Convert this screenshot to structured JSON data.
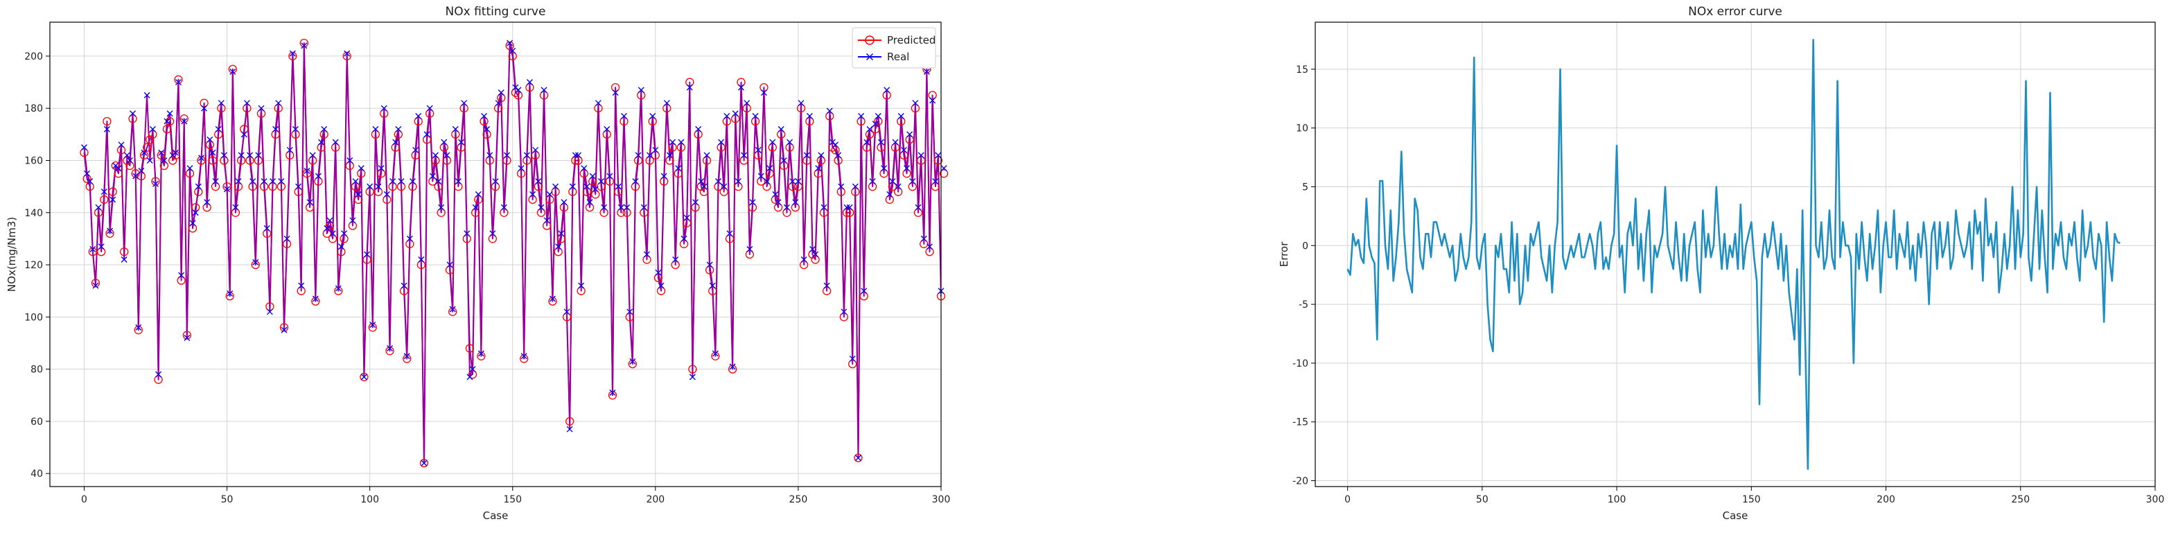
{
  "figure": {
    "colors": {
      "predicted": "#ff0000",
      "real": "#0000ff",
      "fit_line": "#9a009a",
      "error_line": "#1f8ec0",
      "grid": "#d3d3d3",
      "axes": "#000000"
    }
  },
  "chart_data": [
    {
      "type": "line",
      "title": "NOx fitting curve",
      "xlabel": "Case",
      "ylabel": "NOx(mg/Nm3)",
      "xlim": [
        -12,
        300
      ],
      "ylim": [
        35,
        213
      ],
      "xticks": [
        0,
        50,
        100,
        150,
        200,
        250,
        300
      ],
      "yticks": [
        40,
        60,
        80,
        100,
        120,
        140,
        160,
        180,
        200
      ],
      "grid": true,
      "legend": {
        "position": "top-right",
        "entries": [
          "Predicted",
          "Real"
        ]
      },
      "series": [
        {
          "name": "Predicted",
          "marker": "circle",
          "color": "#ff0000",
          "values": [
            163,
            153,
            150,
            125,
            113,
            140,
            125,
            145,
            175,
            132,
            148,
            158,
            155,
            164,
            125,
            160,
            158,
            176,
            155,
            95,
            154,
            162,
            165,
            168,
            170,
            152,
            76,
            162,
            158,
            172,
            175,
            160,
            162,
            191,
            114,
            176,
            93,
            155,
            134,
            142,
            148,
            160,
            182,
            142,
            166,
            160,
            150,
            170,
            180,
            160,
            150,
            108,
            195,
            140,
            150,
            160,
            172,
            180,
            160,
            150,
            120,
            160,
            178,
            150,
            132,
            104,
            150,
            170,
            180,
            150,
            96,
            128,
            162,
            200,
            170,
            148,
            110,
            205,
            155,
            142,
            160,
            106,
            152,
            165,
            170,
            132,
            135,
            130,
            165,
            110,
            125,
            130,
            200,
            158,
            135,
            150,
            145,
            155,
            77,
            122,
            148,
            96,
            170,
            148,
            155,
            178,
            145,
            87,
            150,
            165,
            170,
            150,
            110,
            84,
            128,
            150,
            162,
            175,
            120,
            44,
            168,
            178,
            152,
            160,
            150,
            140,
            165,
            160,
            118,
            102,
            170,
            150,
            165,
            180,
            130,
            88,
            78,
            140,
            145,
            85,
            175,
            170,
            160,
            130,
            150,
            180,
            184,
            140,
            160,
            204,
            200,
            186,
            185,
            155,
            84,
            160,
            188,
            145,
            162,
            150,
            140,
            185,
            135,
            145,
            106,
            148,
            125,
            130,
            142,
            100,
            60,
            148,
            160,
            160,
            110,
            155,
            148,
            142,
            152,
            147,
            180,
            150,
            140,
            170,
            152,
            70,
            188,
            148,
            140,
            175,
            140,
            100,
            82,
            150,
            160,
            185,
            140,
            122,
            160,
            175,
            162,
            115,
            110,
            152,
            180,
            160,
            165,
            120,
            155,
            165,
            128,
            136,
            190,
            80,
            142,
            170,
            150,
            148,
            160,
            118,
            110,
            85,
            150,
            165,
            148,
            175,
            130,
            80,
            176,
            150,
            190,
            160,
            180,
            124,
            142,
            175,
            162,
            152,
            188,
            150,
            155,
            165,
            145,
            142,
            170,
            158,
            140,
            165,
            150,
            142,
            150,
            180,
            120,
            160,
            175,
            124,
            122,
            155,
            160,
            140,
            110,
            177,
            165,
            164,
            160,
            148,
            100,
            140,
            140,
            82,
            148,
            46,
            175,
            108,
            165,
            170,
            150,
            172,
            175,
            165,
            155,
            185,
            145,
            150,
            165,
            148,
            175,
            162,
            155,
            168,
            150,
            180,
            140,
            160,
            128,
            195,
            125,
            185,
            150,
            160,
            108,
            155
          ]
        },
        {
          "name": "Real",
          "marker": "x",
          "color": "#0000ff",
          "values": [
            165,
            155,
            152,
            126,
            112,
            142,
            127,
            148,
            172,
            133,
            145,
            158,
            157,
            166,
            122,
            162,
            160,
            178,
            154,
            96,
            156,
            163,
            185,
            160,
            172,
            151,
            78,
            163,
            160,
            175,
            178,
            162,
            163,
            190,
            116,
            175,
            92,
            157,
            136,
            140,
            150,
            161,
            180,
            144,
            168,
            163,
            152,
            172,
            182,
            162,
            149,
            109,
            194,
            142,
            152,
            162,
            170,
            182,
            162,
            152,
            121,
            162,
            180,
            152,
            134,
            102,
            152,
            172,
            182,
            152,
            95,
            130,
            164,
            201,
            172,
            150,
            112,
            204,
            156,
            144,
            162,
            107,
            154,
            167,
            172,
            134,
            137,
            132,
            167,
            111,
            127,
            132,
            201,
            160,
            137,
            152,
            147,
            157,
            77,
            124,
            150,
            97,
            172,
            150,
            157,
            180,
            147,
            88,
            152,
            167,
            172,
            152,
            112,
            85,
            130,
            152,
            164,
            177,
            122,
            44,
            170,
            180,
            154,
            162,
            152,
            142,
            167,
            162,
            120,
            103,
            172,
            152,
            167,
            182,
            132,
            77,
            80,
            142,
            147,
            86,
            177,
            172,
            162,
            132,
            152,
            182,
            186,
            142,
            162,
            205,
            202,
            188,
            187,
            157,
            85,
            162,
            190,
            147,
            164,
            152,
            142,
            187,
            137,
            147,
            107,
            150,
            127,
            132,
            144,
            102,
            57,
            150,
            162,
            162,
            112,
            157,
            150,
            144,
            154,
            149,
            182,
            152,
            142,
            172,
            154,
            71,
            186,
            150,
            142,
            177,
            142,
            102,
            83,
            152,
            162,
            187,
            142,
            124,
            162,
            177,
            164,
            117,
            112,
            154,
            182,
            162,
            167,
            122,
            157,
            167,
            130,
            138,
            188,
            77,
            144,
            172,
            152,
            150,
            162,
            120,
            112,
            86,
            152,
            167,
            150,
            177,
            132,
            81,
            178,
            152,
            188,
            162,
            182,
            126,
            144,
            177,
            164,
            154,
            186,
            152,
            157,
            167,
            147,
            144,
            172,
            160,
            142,
            167,
            152,
            144,
            152,
            182,
            122,
            162,
            177,
            126,
            124,
            157,
            162,
            142,
            112,
            179,
            167,
            166,
            162,
            150,
            102,
            142,
            142,
            84,
            150,
            46,
            177,
            110,
            167,
            172,
            152,
            174,
            177,
            167,
            157,
            187,
            147,
            152,
            167,
            150,
            177,
            164,
            157,
            170,
            152,
            182,
            142,
            162,
            130,
            194,
            127,
            183,
            152,
            162,
            110,
            157
          ]
        }
      ]
    },
    {
      "type": "line",
      "title": "NOx error curve",
      "xlabel": "Case",
      "ylabel": "Error",
      "xlim": [
        -12,
        300
      ],
      "ylim": [
        -20.5,
        19
      ],
      "xticks": [
        0,
        50,
        100,
        150,
        200,
        250,
        300
      ],
      "yticks": [
        -20,
        -15,
        -10,
        -5,
        0,
        5,
        10,
        15
      ],
      "grid": true,
      "series": [
        {
          "name": "",
          "color": "#1f8ec0",
          "values": [
            -2,
            -2.5,
            1,
            0,
            0.5,
            -1,
            -1.5,
            4,
            0,
            -1,
            -1.5,
            -8,
            5.5,
            5.5,
            0,
            -2,
            3,
            -3,
            -1,
            2,
            8,
            1,
            -2,
            -3,
            -4,
            4,
            3,
            -1,
            -2,
            1,
            1,
            -1,
            2,
            2,
            1,
            0,
            1,
            0,
            -1,
            0,
            -3,
            -2,
            1,
            -1,
            -2,
            -1,
            2,
            16,
            -1,
            -2,
            0,
            1,
            -5,
            -8,
            -9,
            0,
            -1,
            1,
            -2,
            -2,
            -4,
            2,
            -3,
            1,
            -5,
            -4,
            0,
            -3,
            1,
            0,
            1,
            2,
            -1,
            -2,
            -3,
            0,
            -4,
            0,
            2,
            15,
            -1,
            -2,
            -1,
            0,
            -1,
            0,
            1,
            -1,
            -1,
            0,
            1,
            0,
            -2,
            1,
            2,
            -2,
            -1,
            -2,
            0,
            1,
            8.5,
            -1,
            0,
            -4,
            1,
            2,
            0,
            4,
            -2,
            1,
            -3,
            1,
            3,
            -4,
            0,
            -1,
            0,
            1,
            5,
            0,
            -1,
            -2,
            2,
            -1,
            -3,
            1,
            -3,
            0,
            1,
            2,
            -2,
            -4,
            3,
            -1,
            1,
            -1,
            0,
            5,
            1,
            -2,
            1,
            -2,
            0,
            -1,
            1,
            -2,
            3.5,
            -2,
            0,
            1,
            2,
            -1,
            -3,
            -13.5,
            -1,
            1,
            -1,
            0,
            2,
            0,
            -2,
            1,
            -3,
            0,
            -4,
            -6,
            -8,
            -2,
            -11,
            3,
            -8,
            -19,
            0,
            17.5,
            0,
            -1,
            2,
            -2,
            -1,
            3,
            -1,
            -2,
            14,
            -1,
            2,
            0,
            0,
            -1,
            -10,
            1,
            -2,
            2,
            -1,
            -3,
            1,
            -2,
            0,
            3,
            -4,
            0,
            2,
            -1,
            -1,
            3,
            -2,
            1,
            0,
            -1,
            2,
            -2,
            0,
            -3,
            1,
            -1,
            2,
            0,
            -5,
            1,
            2,
            -2,
            2,
            -1,
            0,
            2,
            -2,
            -1,
            3,
            1,
            0,
            -1,
            0,
            2,
            -2,
            3,
            1,
            2,
            -3,
            4,
            0,
            1,
            -1,
            2,
            -4,
            -2,
            1,
            -2,
            0,
            5,
            -2,
            3,
            -1,
            1,
            14,
            -1,
            -3,
            1,
            5,
            -2,
            3,
            -1,
            -4,
            13,
            -2,
            1,
            0,
            2,
            -1,
            -2,
            1,
            0,
            2,
            -1,
            -3,
            3,
            -1,
            0,
            2,
            -1,
            -2,
            1,
            0,
            -6.5,
            2,
            -1,
            -3,
            1,
            0.3,
            0.2
          ]
        }
      ]
    }
  ]
}
